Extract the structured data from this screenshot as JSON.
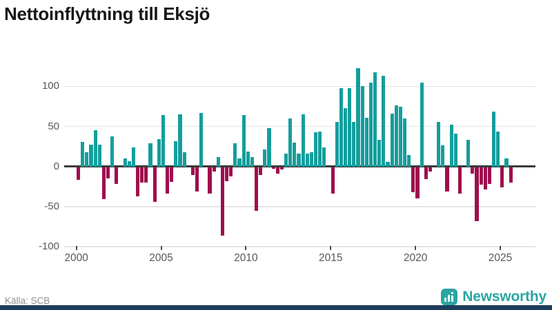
{
  "title": "Nettoinflyttning till Eksjö",
  "source": "Källa: SCB",
  "brand": {
    "name": "Newsworthy",
    "icon": "bar-chart-speech-bubble-icon",
    "color": "#2ba5a2"
  },
  "colors": {
    "positive_bar": "#149e9c",
    "negative_bar": "#9e0d4d",
    "gridline": "#e4e4e4",
    "zero_axis": "#3a3a3a",
    "tick_label": "#58585a",
    "bottom_bar": "#1d3d5c"
  },
  "chart_data": {
    "type": "bar",
    "title": "Nettoinflyttning till Eksjö",
    "frequency": "quarterly",
    "x_start": "2000Q1",
    "x_end": "2025Q3",
    "xlabel": "",
    "ylabel": "",
    "ylim": [
      -100,
      130
    ],
    "grid": true,
    "legend": false,
    "y_ticks": [
      100,
      50,
      0,
      -50,
      -100
    ],
    "y_tick_labels": [
      "100",
      "50",
      "0",
      "-50",
      "-100"
    ],
    "x_tick_labels": [
      "2000",
      "2005",
      "2010",
      "2015",
      "2020",
      "2025"
    ],
    "x_tick_years": [
      2000,
      2005,
      2010,
      2015,
      2020,
      2025
    ],
    "values": [
      -17,
      31,
      18,
      27,
      45,
      27,
      -41,
      -15,
      38,
      -22,
      0,
      10,
      7,
      24,
      -37,
      -20,
      -20,
      29,
      -44,
      34,
      64,
      -34,
      -19,
      32,
      65,
      18,
      0,
      -11,
      -31,
      67,
      0,
      -34,
      -6,
      12,
      -86,
      -18,
      -12,
      29,
      10,
      64,
      19,
      12,
      -55,
      -11,
      21,
      48,
      -3,
      -9,
      -4,
      16,
      60,
      30,
      16,
      65,
      16,
      18,
      43,
      44,
      24,
      0,
      -34,
      56,
      98,
      73,
      98,
      56,
      123,
      100,
      61,
      105,
      118,
      33,
      113,
      6,
      66,
      76,
      75,
      60,
      14,
      -32,
      -40,
      105,
      -16,
      -6,
      0,
      56,
      26,
      -31,
      52,
      41,
      -34,
      0,
      33,
      -9,
      -68,
      -23,
      -29,
      -22,
      69,
      44,
      -26,
      10,
      -20
    ]
  }
}
